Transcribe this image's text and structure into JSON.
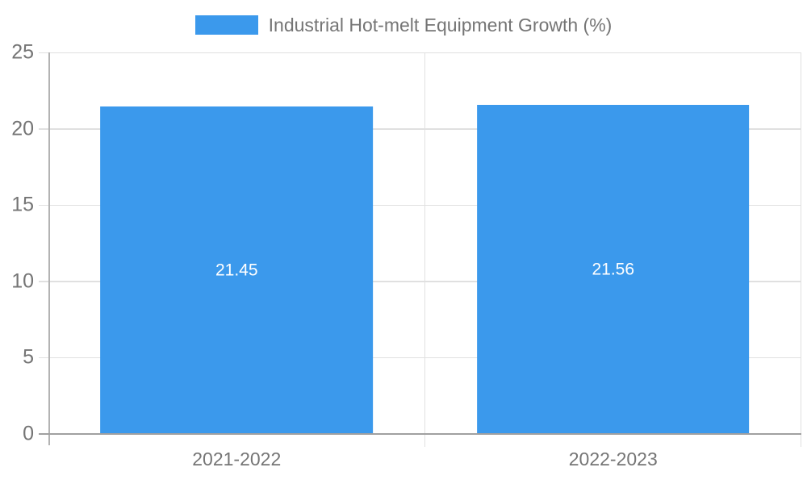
{
  "legend": {
    "label": "Industrial Hot-melt Equipment Growth (%)"
  },
  "chart_data": {
    "type": "bar",
    "title": "",
    "categories": [
      "2021-2022",
      "2022-2023"
    ],
    "series": [
      {
        "name": "Industrial Hot-melt Equipment Growth (%)",
        "values": [
          21.45,
          21.56
        ]
      }
    ],
    "data_labels": [
      "21.45",
      "21.56"
    ],
    "xlabel": "",
    "ylabel": "",
    "ylim": [
      0,
      25
    ],
    "yticks": [
      0,
      5,
      10,
      15,
      20,
      25
    ],
    "grid": true,
    "legend_position": "top",
    "bar_width_fraction": 0.724,
    "colors": {
      "bar": "#3B99EC",
      "axis_text": "#757575",
      "grid_line": "#e0e0e0",
      "axis_line": "#a0a0a0",
      "y_axis_line": "#b3b3b3",
      "value_label": "#ffffff",
      "background": "#ffffff"
    }
  }
}
